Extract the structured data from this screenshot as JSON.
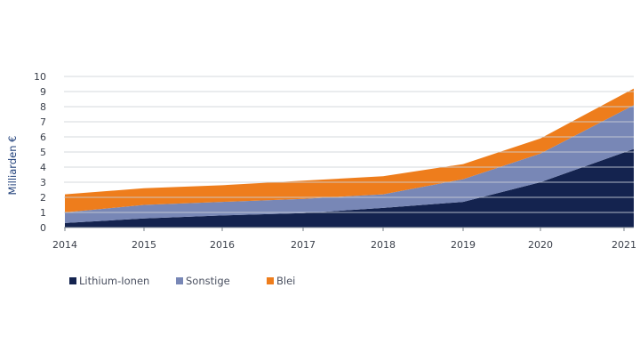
{
  "chart_data": {
    "type": "area",
    "stacked": true,
    "title": "",
    "xlabel": "",
    "ylabel": "Milliarden €",
    "categories": [
      "2014",
      "2015",
      "2016",
      "2017",
      "2018",
      "2019",
      "2020",
      "2021"
    ],
    "yticks": [
      "0",
      "1",
      "2",
      "3",
      "4",
      "5",
      "6",
      "7",
      "8",
      "9",
      "10"
    ],
    "ylim": [
      0,
      10
    ],
    "grid": true,
    "legend_position": "bottom-left",
    "series": [
      {
        "name": "Lithium-Ionen",
        "color": "#14234f",
        "values": [
          0.3,
          0.6,
          0.8,
          0.95,
          1.3,
          1.7,
          3.0,
          5.2
        ]
      },
      {
        "name": "Sonstige",
        "color": "#7887b6",
        "values": [
          0.7,
          0.9,
          0.9,
          0.95,
          0.9,
          1.5,
          1.9,
          2.9
        ]
      },
      {
        "name": "Blei",
        "color": "#ee7d1c",
        "values": [
          1.2,
          1.1,
          1.1,
          1.2,
          1.2,
          1.0,
          1.0,
          1.1
        ]
      }
    ],
    "totals": [
      2.2,
      2.6,
      2.8,
      3.1,
      3.4,
      4.2,
      5.9,
      9.2
    ]
  }
}
